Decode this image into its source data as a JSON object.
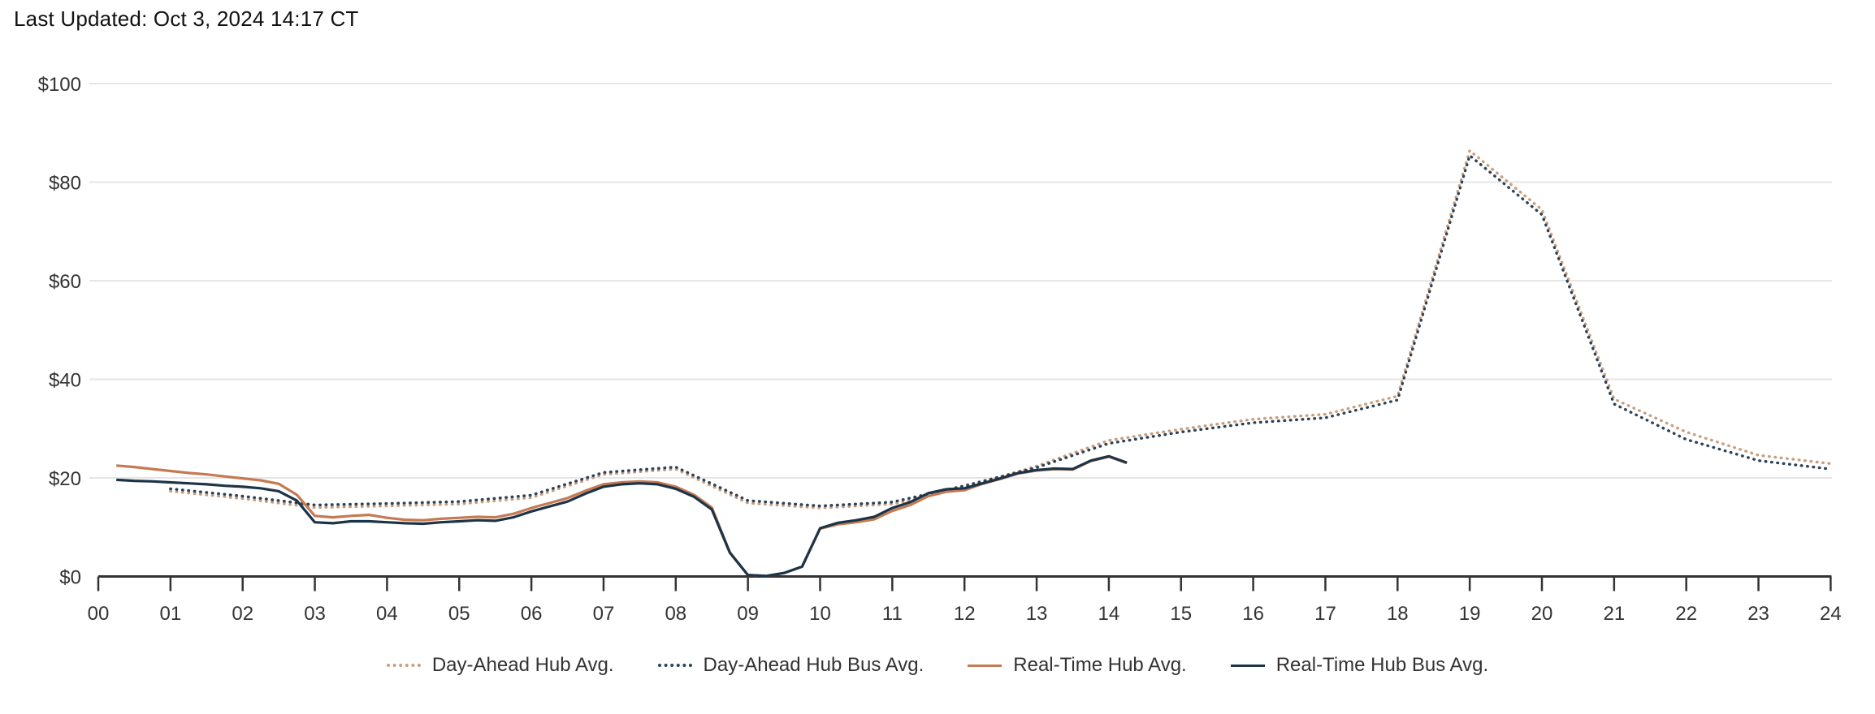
{
  "page": {
    "title": "Last Updated: Oct 3, 2024 14:17 CT",
    "background": "#ffffff"
  },
  "menu_icon": {
    "name": "context-menu-burger",
    "color": "#606060"
  },
  "chart_data": {
    "type": "line",
    "title": "Last Updated: Oct 3, 2024 14:17 CT",
    "xlabel": "",
    "ylabel": "",
    "xlim": [
      0,
      24
    ],
    "ylim": [
      0,
      100
    ],
    "grid": "horizontal",
    "gridline_color": "#e6e6e6",
    "axis_color": "#333333",
    "legend_position": "bottom",
    "x_ticks": [
      "00",
      "01",
      "02",
      "03",
      "04",
      "05",
      "06",
      "07",
      "08",
      "09",
      "10",
      "11",
      "12",
      "13",
      "14",
      "15",
      "16",
      "17",
      "18",
      "19",
      "20",
      "21",
      "22",
      "23",
      "24"
    ],
    "y_ticks": [
      {
        "value": 0,
        "label": "$0"
      },
      {
        "value": 20,
        "label": "$20"
      },
      {
        "value": 40,
        "label": "$40"
      },
      {
        "value": 60,
        "label": "$60"
      },
      {
        "value": 80,
        "label": "$80"
      },
      {
        "value": 100,
        "label": "$100"
      }
    ],
    "series": [
      {
        "name": "Day-Ahead Hub Avg.",
        "style": "dotted",
        "color": "#c99e7e",
        "x": [
          1,
          2,
          3,
          4,
          5,
          6,
          7,
          8,
          9,
          10,
          11,
          12,
          13,
          14,
          15,
          16,
          17,
          18,
          19,
          20,
          21,
          22,
          23,
          24
        ],
        "values": [
          17.3,
          15.8,
          14.0,
          14.3,
          14.7,
          16.0,
          20.7,
          21.8,
          14.9,
          13.9,
          14.7,
          18.0,
          22.4,
          27.6,
          29.9,
          31.9,
          32.9,
          36.6,
          86.4,
          74.4,
          36.0,
          29.3,
          24.6,
          22.9
        ]
      },
      {
        "name": "Day-Ahead Hub Bus Avg.",
        "style": "dotted",
        "color": "#2c4256",
        "x": [
          1,
          2,
          3,
          4,
          5,
          6,
          7,
          8,
          9,
          10,
          11,
          12,
          13,
          14,
          15,
          16,
          17,
          18,
          19,
          20,
          21,
          22,
          23,
          24
        ],
        "values": [
          17.8,
          16.3,
          14.5,
          14.8,
          15.2,
          16.5,
          21.1,
          22.2,
          15.4,
          14.3,
          15.1,
          18.4,
          22.1,
          27.0,
          29.3,
          31.2,
          32.2,
          35.8,
          85.4,
          73.4,
          35.0,
          27.8,
          23.5,
          21.8
        ]
      },
      {
        "name": "Real-Time Hub Avg.",
        "style": "solid",
        "color": "#c57a52",
        "x": [
          0.25,
          0.5,
          0.75,
          1,
          1.25,
          1.5,
          1.75,
          2,
          2.25,
          2.5,
          2.75,
          3,
          3.25,
          3.5,
          3.75,
          4,
          4.25,
          4.5,
          4.75,
          5,
          5.25,
          5.5,
          5.75,
          6,
          6.25,
          6.5,
          6.75,
          7,
          7.25,
          7.5,
          7.75,
          8,
          8.25,
          8.5,
          8.75,
          9,
          9.25,
          9.5,
          9.75,
          10,
          10.25,
          10.5,
          10.75,
          11,
          11.25,
          11.5,
          11.75,
          12,
          12.25,
          12.5,
          12.75,
          13,
          13.25,
          13.5,
          13.75,
          14,
          14.25
        ],
        "values": [
          22.5,
          22.2,
          21.8,
          21.4,
          21.0,
          20.7,
          20.3,
          19.9,
          19.5,
          18.8,
          16.6,
          12.3,
          12.0,
          12.3,
          12.5,
          11.9,
          11.5,
          11.4,
          11.7,
          11.9,
          12.1,
          12.0,
          12.7,
          13.9,
          14.9,
          15.9,
          17.4,
          18.7,
          19.1,
          19.3,
          19.1,
          18.2,
          16.6,
          14.0,
          4.9,
          0.3,
          0.1,
          0.7,
          2.0,
          9.7,
          10.6,
          11.0,
          11.6,
          13.3,
          14.5,
          16.3,
          17.2,
          17.5,
          18.8,
          19.8,
          20.9,
          21.5,
          21.8,
          21.7,
          23.4,
          24.3,
          23.0
        ]
      },
      {
        "name": "Real-Time Hub Bus Avg.",
        "style": "solid",
        "color": "#1c3448",
        "x": [
          0.25,
          0.5,
          0.75,
          1,
          1.25,
          1.5,
          1.75,
          2,
          2.25,
          2.5,
          2.75,
          3,
          3.25,
          3.5,
          3.75,
          4,
          4.25,
          4.5,
          4.75,
          5,
          5.25,
          5.5,
          5.75,
          6,
          6.25,
          6.5,
          6.75,
          7,
          7.25,
          7.5,
          7.75,
          8,
          8.25,
          8.5,
          8.75,
          9,
          9.25,
          9.5,
          9.75,
          10,
          10.25,
          10.5,
          10.75,
          11,
          11.25,
          11.5,
          11.75,
          12,
          12.25,
          12.5,
          12.75,
          13,
          13.25,
          13.5,
          13.75,
          14,
          14.25
        ],
        "values": [
          19.6,
          19.4,
          19.3,
          19.1,
          18.9,
          18.7,
          18.4,
          18.2,
          17.9,
          17.3,
          15.4,
          11.0,
          10.8,
          11.2,
          11.2,
          11.0,
          10.8,
          10.7,
          11.0,
          11.2,
          11.4,
          11.3,
          12.0,
          13.2,
          14.2,
          15.2,
          16.8,
          18.2,
          18.7,
          18.9,
          18.7,
          17.8,
          16.2,
          13.6,
          4.8,
          0.3,
          0.1,
          0.7,
          2.0,
          9.8,
          10.9,
          11.4,
          12.1,
          13.9,
          15.1,
          16.9,
          17.7,
          17.9,
          18.9,
          19.9,
          21.0,
          21.6,
          21.9,
          21.8,
          23.5,
          24.4,
          23.1
        ]
      }
    ]
  }
}
